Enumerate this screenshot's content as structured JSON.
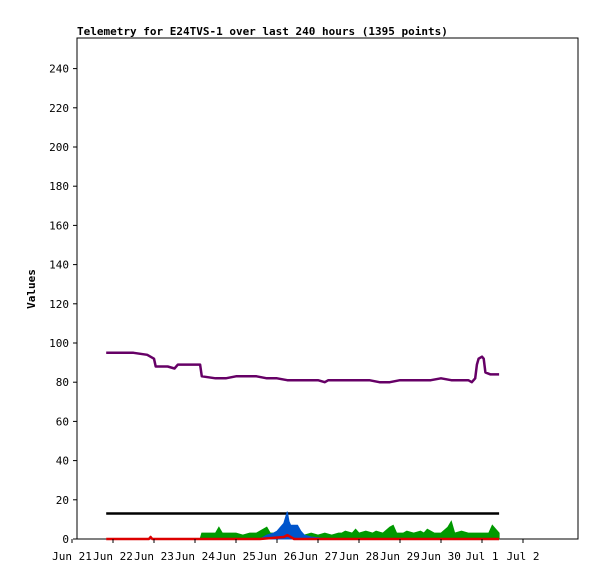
{
  "chart_data": {
    "type": "line",
    "title": "Telemetry for E24TVS-1 over last 240 hours (1395 points)",
    "xlabel": "",
    "ylabel": "Values",
    "ylim": [
      0,
      255
    ],
    "xlim": [
      0,
      240
    ],
    "yticks": [
      0,
      20,
      40,
      60,
      80,
      100,
      120,
      140,
      160,
      180,
      200,
      220,
      240
    ],
    "xticks": [
      {
        "x": 0,
        "label": "Jun 21"
      },
      {
        "x": 24,
        "label": "Jun 22"
      },
      {
        "x": 48,
        "label": "Jun 23"
      },
      {
        "x": 72,
        "label": "Jun 24"
      },
      {
        "x": 96,
        "label": "Jun 25"
      },
      {
        "x": 120,
        "label": "Jun 26"
      },
      {
        "x": 144,
        "label": "Jun 27"
      },
      {
        "x": 168,
        "label": "Jun 28"
      },
      {
        "x": 192,
        "label": "Jun 29"
      },
      {
        "x": 216,
        "label": "Jun 30"
      },
      {
        "x": 240,
        "label": "Jul 1"
      },
      {
        "x": 264,
        "label": "Jul 2"
      }
    ],
    "grid": false,
    "legend": "none",
    "series": [
      {
        "color": "#660066",
        "kind": "line",
        "points": [
          [
            20,
            95
          ],
          [
            24,
            95
          ],
          [
            30,
            95
          ],
          [
            36,
            95
          ],
          [
            44,
            94
          ],
          [
            48,
            92
          ],
          [
            49,
            88
          ],
          [
            56,
            88
          ],
          [
            60,
            87
          ],
          [
            62,
            89
          ],
          [
            69,
            89
          ],
          [
            75,
            89
          ],
          [
            76,
            83
          ],
          [
            84,
            82
          ],
          [
            90,
            82
          ],
          [
            96,
            83
          ],
          [
            102,
            83
          ],
          [
            108,
            83
          ],
          [
            114,
            82
          ],
          [
            120,
            82
          ],
          [
            126,
            81
          ],
          [
            132,
            81
          ],
          [
            138,
            81
          ],
          [
            144,
            81
          ],
          [
            148,
            80
          ],
          [
            150,
            81
          ],
          [
            156,
            81
          ],
          [
            162,
            81
          ],
          [
            168,
            81
          ],
          [
            174,
            81
          ],
          [
            180,
            80
          ],
          [
            186,
            80
          ],
          [
            192,
            81
          ],
          [
            198,
            81
          ],
          [
            204,
            81
          ],
          [
            210,
            81
          ],
          [
            216,
            82
          ],
          [
            222,
            81
          ],
          [
            228,
            81
          ],
          [
            232,
            81
          ],
          [
            234,
            80
          ],
          [
            236,
            82
          ],
          [
            237,
            89
          ],
          [
            238,
            92
          ],
          [
            240,
            93
          ],
          [
            241,
            92
          ],
          [
            242,
            85
          ],
          [
            245,
            84
          ],
          [
            248,
            84
          ],
          [
            250,
            84
          ]
        ]
      },
      {
        "color": "#000000",
        "kind": "line",
        "points": [
          [
            20,
            13
          ],
          [
            250,
            13
          ]
        ]
      },
      {
        "color": "#009900",
        "kind": "area",
        "points": [
          [
            20,
            0
          ],
          [
            48,
            0
          ],
          [
            60,
            0
          ],
          [
            75,
            0
          ],
          [
            76,
            3
          ],
          [
            84,
            3
          ],
          [
            86,
            6
          ],
          [
            88,
            3
          ],
          [
            96,
            3
          ],
          [
            100,
            2
          ],
          [
            104,
            3
          ],
          [
            108,
            3
          ],
          [
            112,
            5
          ],
          [
            114,
            6
          ],
          [
            116,
            3
          ],
          [
            120,
            3
          ],
          [
            124,
            4
          ],
          [
            126,
            2
          ],
          [
            130,
            3
          ],
          [
            136,
            2
          ],
          [
            140,
            3
          ],
          [
            144,
            2
          ],
          [
            148,
            3
          ],
          [
            152,
            2
          ],
          [
            156,
            3
          ],
          [
            158,
            3
          ],
          [
            160,
            4
          ],
          [
            164,
            3
          ],
          [
            166,
            5
          ],
          [
            168,
            3
          ],
          [
            172,
            4
          ],
          [
            176,
            3
          ],
          [
            178,
            4
          ],
          [
            182,
            3
          ],
          [
            186,
            6
          ],
          [
            188,
            7
          ],
          [
            190,
            3
          ],
          [
            194,
            3
          ],
          [
            196,
            4
          ],
          [
            200,
            3
          ],
          [
            204,
            4
          ],
          [
            206,
            3
          ],
          [
            208,
            5
          ],
          [
            212,
            3
          ],
          [
            216,
            3
          ],
          [
            220,
            6
          ],
          [
            222,
            9
          ],
          [
            224,
            3
          ],
          [
            228,
            4
          ],
          [
            232,
            3
          ],
          [
            236,
            3
          ],
          [
            240,
            3
          ],
          [
            244,
            3
          ],
          [
            246,
            7
          ],
          [
            248,
            5
          ],
          [
            250,
            3
          ]
        ]
      },
      {
        "color": "#0055cc",
        "kind": "area",
        "points": [
          [
            20,
            0
          ],
          [
            76,
            0
          ],
          [
            110,
            0
          ],
          [
            114,
            2
          ],
          [
            118,
            3
          ],
          [
            120,
            4
          ],
          [
            122,
            6
          ],
          [
            124,
            8
          ],
          [
            126,
            14
          ],
          [
            127,
            9
          ],
          [
            128,
            7
          ],
          [
            130,
            7
          ],
          [
            132,
            7
          ],
          [
            134,
            4
          ],
          [
            136,
            2
          ],
          [
            140,
            1
          ],
          [
            150,
            0
          ],
          [
            200,
            0
          ],
          [
            250,
            0
          ]
        ]
      },
      {
        "color": "#dd0000",
        "kind": "line",
        "points": [
          [
            20,
            0
          ],
          [
            45,
            0
          ],
          [
            46,
            1
          ],
          [
            47,
            0
          ],
          [
            110,
            0
          ],
          [
            124,
            1
          ],
          [
            126,
            2
          ],
          [
            128,
            1
          ],
          [
            130,
            0
          ],
          [
            250,
            0
          ]
        ]
      }
    ]
  }
}
